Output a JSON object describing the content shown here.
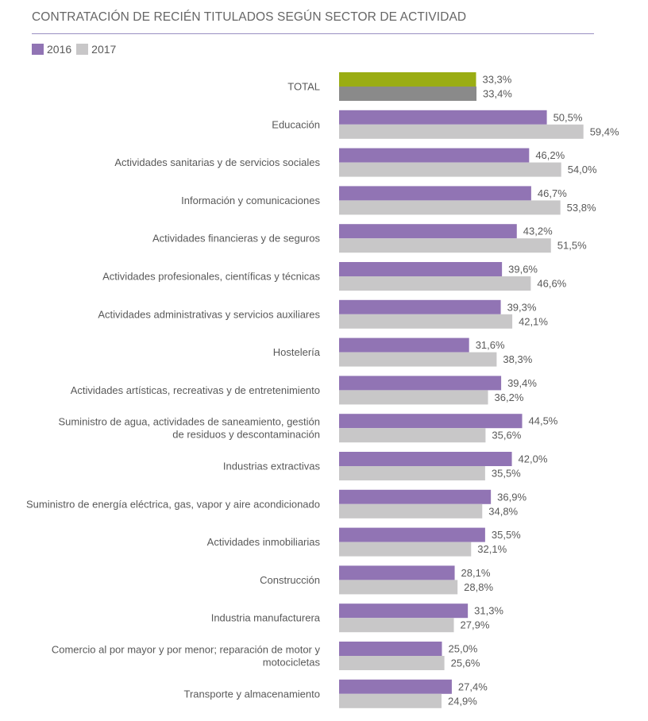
{
  "header": {
    "title": "CONTRATACIÓN DE RECIÉN TITULADOS SEGÚN SECTOR DE ACTIVIDAD"
  },
  "colors": {
    "series_2016": "#9174b4",
    "series_2017": "#c8c7c8",
    "total_2016": "#9aad13",
    "total_2017": "#8a8a8a",
    "label_text": "#595959"
  },
  "chart_data": {
    "type": "bar",
    "orientation": "horizontal",
    "title": "CONTRATACIÓN DE RECIÉN TITULADOS SEGÚN SECTOR DE ACTIVIDAD",
    "legend_position": "top-left",
    "grid": false,
    "xlim": [
      0,
      60
    ],
    "categories": [
      [
        "TOTAL"
      ],
      [
        "Educación"
      ],
      [
        "Actividades sanitarias y de servicios sociales"
      ],
      [
        "Información y comunicaciones"
      ],
      [
        "Actividades financieras y de seguros"
      ],
      [
        "Actividades profesionales, científicas y técnicas"
      ],
      [
        "Actividades administrativas y servicios auxiliares"
      ],
      [
        "Hostelería"
      ],
      [
        "Actividades artísticas, recreativas y de entretenimiento"
      ],
      [
        "Suministro de agua, actividades de saneamiento, gestión",
        "de residuos y descontaminación"
      ],
      [
        "Industrias extractivas"
      ],
      [
        "Suministro de energía eléctrica, gas, vapor y aire acondicionado"
      ],
      [
        "Actividades inmobiliarias"
      ],
      [
        "Construcción"
      ],
      [
        "Industria manufacturera"
      ],
      [
        "Comercio al por mayor y por menor; reparación de motor y",
        "motocicletas"
      ],
      [
        "Transporte y almacenamiento"
      ]
    ],
    "series": [
      {
        "name": "2016",
        "values": [
          33.3,
          50.5,
          46.2,
          46.7,
          43.2,
          39.6,
          39.3,
          31.6,
          39.4,
          44.5,
          42.0,
          36.9,
          35.5,
          28.1,
          31.3,
          25.0,
          27.4
        ],
        "labels": [
          "33,3%",
          "50,5%",
          "46,2%",
          "46,7%",
          "43,2%",
          "39,6%",
          "39,3%",
          "31,6%",
          "39,4%",
          "44,5%",
          "42,0%",
          "36,9%",
          "35,5%",
          "28,1%",
          "31,3%",
          "25,0%",
          "27,4%"
        ]
      },
      {
        "name": "2017",
        "values": [
          33.4,
          59.4,
          54.0,
          53.8,
          51.5,
          46.6,
          42.1,
          38.3,
          36.2,
          35.6,
          35.5,
          34.8,
          32.1,
          28.8,
          27.9,
          25.6,
          24.9
        ],
        "labels": [
          "33,4%",
          "59,4%",
          "54,0%",
          "53,8%",
          "51,5%",
          "46,6%",
          "42,1%",
          "38,3%",
          "36,2%",
          "35,6%",
          "35,5%",
          "34,8%",
          "32,1%",
          "28,8%",
          "27,9%",
          "25,6%",
          "24,9%"
        ]
      }
    ]
  }
}
